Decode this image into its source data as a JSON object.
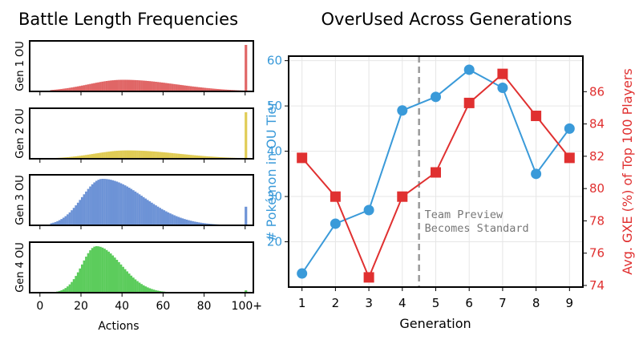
{
  "left_chart": {
    "title": "Battle Length Frequencies",
    "xlabel": "Actions",
    "x_ticks": [
      "0",
      "20",
      "40",
      "60",
      "80",
      "100+"
    ],
    "panels": [
      {
        "label": "Gen 1 OU",
        "color": "#e06666"
      },
      {
        "label": "Gen 2 OU",
        "color": "#e0cc55"
      },
      {
        "label": "Gen 3 OU",
        "color": "#6d93d6"
      },
      {
        "label": "Gen 4 OU",
        "color": "#5ccc5c"
      }
    ]
  },
  "right_chart": {
    "title": "OverUsed Across Generations",
    "xlabel": "Generation",
    "ylabel_left": "# Pokémon in OU Tier",
    "ylabel_right": "Avg. GXE (%) of Top 100 Players",
    "annotation": [
      "Team Preview",
      "Becomes Standard"
    ],
    "left_color": "#3a9ad9",
    "right_color": "#e03030"
  },
  "chart_data": [
    {
      "type": "bar",
      "title": "Battle Length Frequencies",
      "xlabel": "Actions",
      "xlim": [
        -5,
        104
      ],
      "panel_order": [
        "Gen 1 OU",
        "Gen 2 OU",
        "Gen 3 OU",
        "Gen 4 OU"
      ],
      "series": [
        {
          "name": "Gen 1 OU",
          "peak_action": 40,
          "left_spread": 17,
          "right_spread": 26,
          "start": 5,
          "peak_rel_height": 0.25,
          "overflow_rel_height": 1.0
        },
        {
          "name": "Gen 2 OU",
          "peak_action": 42,
          "left_spread": 16,
          "right_spread": 25,
          "start": 5,
          "peak_rel_height": 0.18,
          "overflow_rel_height": 1.0
        },
        {
          "name": "Gen 3 OU",
          "peak_action": 30,
          "left_spread": 10,
          "right_spread": 20,
          "start": 5,
          "peak_rel_height": 1.0,
          "overflow_rel_height": 0.4
        },
        {
          "name": "Gen 4 OU",
          "peak_action": 27,
          "left_spread": 7,
          "right_spread": 12,
          "start": 5,
          "peak_rel_height": 1.0,
          "overflow_rel_height": 0.05
        }
      ]
    },
    {
      "type": "line",
      "title": "OverUsed Across Generations",
      "xlabel": "Generation",
      "x": [
        1,
        2,
        3,
        4,
        5,
        6,
        7,
        8,
        9
      ],
      "xlim": [
        0.6,
        9.4
      ],
      "annotation_x": 4.5,
      "series": [
        {
          "name": "# Pokémon in OU Tier",
          "axis": "left",
          "marker": "circle",
          "values": [
            13,
            24,
            27,
            49,
            52,
            58,
            54,
            35,
            45
          ]
        },
        {
          "name": "Avg. GXE (%) of Top 100 Players",
          "axis": "right",
          "marker": "square",
          "values": [
            81.9,
            79.5,
            74.5,
            79.5,
            81.0,
            85.3,
            87.1,
            84.5,
            81.9
          ]
        }
      ],
      "ylim_left": [
        10,
        61
      ],
      "yticks_left": [
        20,
        30,
        40,
        50,
        60
      ],
      "ylim_right": [
        73.9,
        88.2
      ],
      "yticks_right": [
        74,
        76,
        78,
        80,
        82,
        84,
        86
      ],
      "grid": true
    }
  ]
}
